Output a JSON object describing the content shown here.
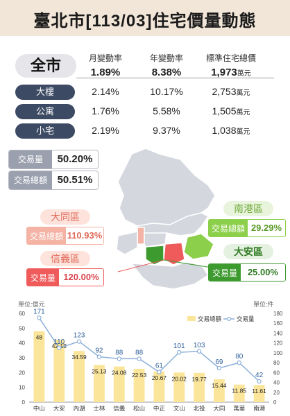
{
  "title": "臺北市[113/03]住宅價量動態",
  "headers": {
    "month": "月變動率",
    "year": "年變動率",
    "total": "標準住宅總價"
  },
  "unit": "萬元",
  "city": {
    "label": "全市",
    "month": "1.89%",
    "year": "8.38%",
    "total": "1,973"
  },
  "types": [
    {
      "label": "大樓",
      "month": "2.14%",
      "year": "10.17%",
      "total": "2,753"
    },
    {
      "label": "公寓",
      "month": "1.76%",
      "year": "5.58%",
      "total": "1,505"
    },
    {
      "label": "小宅",
      "month": "2.19%",
      "year": "9.37%",
      "total": "1,038"
    }
  ],
  "stats": [
    {
      "label": "交易量",
      "value": "50.20%"
    },
    {
      "label": "交易總額",
      "value": "50.51%"
    }
  ],
  "highlights": {
    "datong": {
      "name": "大同區",
      "label": "交易總額",
      "value": "110.93%"
    },
    "xinyi": {
      "name": "信義區",
      "label": "交易量",
      "value": "120.00%"
    },
    "nangang": {
      "name": "南港區",
      "label": "交易總額",
      "value": "29.29%"
    },
    "daan": {
      "name": "大安區",
      "label": "交易量",
      "value": "25.00%"
    }
  },
  "colors": {
    "bar": "#fbe59a",
    "line": "#8aaed9",
    "nangang": "#8ccf4a",
    "daan": "#3c9a2e",
    "xinyi": "#ef5a5a",
    "datong": "#f4b3a4",
    "pill": "#3d4a63"
  },
  "chart_data": {
    "type": "bar",
    "categories": [
      "中山",
      "大安",
      "內湖",
      "士林",
      "信義",
      "松山",
      "中正",
      "文山",
      "北投",
      "大同",
      "萬華",
      "南港"
    ],
    "series": [
      {
        "name": "交易總額",
        "type": "bar",
        "axis": "left",
        "values": [
          48,
          42.18,
          34.59,
          25.13,
          24.08,
          22.53,
          20.67,
          20.02,
          19.77,
          15.44,
          11.85,
          11.61
        ]
      },
      {
        "name": "交易量",
        "type": "line",
        "axis": "right",
        "values": [
          171,
          110,
          123,
          92,
          88,
          88,
          61,
          101,
          103,
          69,
          80,
          42
        ]
      }
    ],
    "ylabel_left": "單位:億元",
    "ylabel_right": "單位:件",
    "ylim_left": [
      0,
      60
    ],
    "ylim_right": [
      0,
      180
    ],
    "yticks_left": [
      "0",
      "10",
      "20",
      "30",
      "40",
      "50",
      "60"
    ],
    "yticks_right": [
      "0",
      "20",
      "40",
      "60",
      "80",
      "100",
      "120",
      "140",
      "160",
      "180"
    ],
    "legend_position": "top-right",
    "grid": false
  }
}
